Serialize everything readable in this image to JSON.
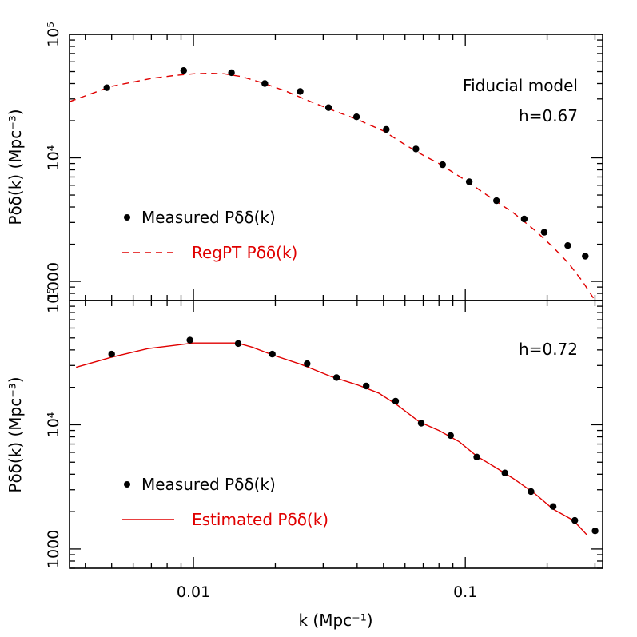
{
  "chart_data": [
    {
      "type": "scatter",
      "panel": "top",
      "xscale": "log",
      "yscale": "log",
      "xlim": [
        0.0035,
        0.32
      ],
      "ylim": [
        700,
        100000
      ],
      "ylabel": "Pδδ(k) (Mpc⁻³)",
      "yticks": [
        {
          "value": 1000,
          "label": "1000"
        },
        {
          "value": 10000,
          "label": "10⁴"
        },
        {
          "value": 100000,
          "label": "10⁵"
        }
      ],
      "annotations": [
        "Fiducial model",
        "h=0.67"
      ],
      "legend": [
        {
          "label": "Measured Pδδ(k)",
          "style": "points",
          "color": "#000000"
        },
        {
          "label": "RegPT Pδδ(k)",
          "style": "dashed",
          "color": "#e00000"
        }
      ],
      "series": [
        {
          "name": "Measured Pδδ(k)",
          "x": [
            0.0048,
            0.0092,
            0.0138,
            0.0183,
            0.0247,
            0.0314,
            0.0398,
            0.0512,
            0.0658,
            0.0825,
            0.1034,
            0.1302,
            0.1647,
            0.1951,
            0.2382,
            0.2763
          ],
          "y": [
            37000,
            51000,
            49000,
            40000,
            34500,
            25500,
            21500,
            17000,
            11800,
            8800,
            6400,
            4500,
            3200,
            2500,
            1950,
            1600
          ]
        },
        {
          "name": "RegPT Pδδ(k)",
          "x": [
            0.0035,
            0.005,
            0.007,
            0.0085,
            0.01,
            0.0115,
            0.013,
            0.015,
            0.018,
            0.022,
            0.027,
            0.033,
            0.04,
            0.05,
            0.06,
            0.07,
            0.08,
            0.1,
            0.12,
            0.15,
            0.18,
            0.21,
            0.24,
            0.27,
            0.3
          ],
          "y": [
            28500,
            38000,
            44000,
            46500,
            48000,
            48500,
            48000,
            45500,
            40500,
            34500,
            28500,
            24000,
            20500,
            16500,
            12800,
            10500,
            9000,
            6600,
            5000,
            3600,
            2600,
            1900,
            1400,
            1000,
            700
          ]
        }
      ]
    },
    {
      "type": "scatter",
      "panel": "bottom",
      "xscale": "log",
      "yscale": "log",
      "xlim": [
        0.0035,
        0.32
      ],
      "ylim": [
        700,
        100000
      ],
      "xlabel": "k (Mpc⁻¹)",
      "ylabel": "Pδδ(k) (Mpc⁻³)",
      "xticks": [
        {
          "value": 0.01,
          "label": "0.01"
        },
        {
          "value": 0.1,
          "label": "0.1"
        }
      ],
      "yticks": [
        {
          "value": 1000,
          "label": "1000"
        },
        {
          "value": 10000,
          "label": "10⁴"
        },
        {
          "value": 100000,
          "label": "10⁵"
        }
      ],
      "annotations": [
        "h=0.72"
      ],
      "legend": [
        {
          "label": "Measured Pδδ(k)",
          "style": "points",
          "color": "#000000"
        },
        {
          "label": "Estimated Pδδ(k)",
          "style": "solid",
          "color": "#e00000"
        }
      ],
      "series": [
        {
          "name": "Measured Pδδ(k)",
          "x": [
            0.005,
            0.0097,
            0.0146,
            0.0195,
            0.0262,
            0.0336,
            0.0432,
            0.0554,
            0.0688,
            0.0883,
            0.1102,
            0.1398,
            0.1745,
            0.2105,
            0.2528,
            0.3003
          ],
          "y": [
            37000,
            48000,
            45000,
            37000,
            31000,
            24000,
            20500,
            15500,
            10300,
            8200,
            5500,
            4100,
            2900,
            2200,
            1700,
            1400
          ]
        },
        {
          "name": "Estimated Pδδ(k)",
          "x": [
            0.0037,
            0.005,
            0.0068,
            0.0085,
            0.01,
            0.012,
            0.0145,
            0.0165,
            0.0195,
            0.025,
            0.032,
            0.04,
            0.048,
            0.056,
            0.068,
            0.08,
            0.095,
            0.11,
            0.13,
            0.15,
            0.18,
            0.21,
            0.25,
            0.28
          ],
          "y": [
            29000,
            35000,
            41000,
            43500,
            45500,
            45500,
            45500,
            42000,
            36500,
            30500,
            24500,
            21000,
            18000,
            14500,
            10500,
            9000,
            7300,
            5600,
            4500,
            3700,
            2800,
            2100,
            1700,
            1300
          ]
        }
      ]
    }
  ]
}
